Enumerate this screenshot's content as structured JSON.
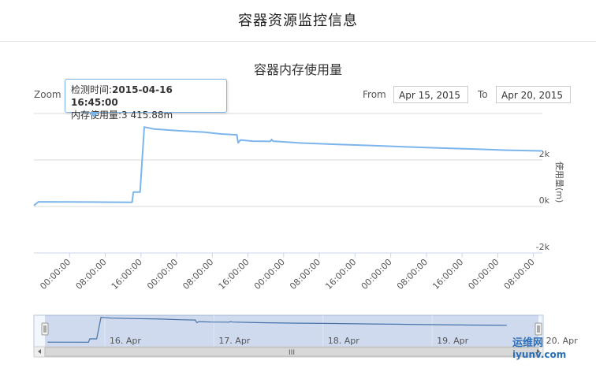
{
  "page": {
    "title": "容器资源监控信息"
  },
  "chart": {
    "title": "容器内存使用量"
  },
  "controls": {
    "zoom_label": "Zoom",
    "from_label": "From",
    "from_value": "Apr 15, 2015",
    "to_label": "To",
    "to_value": "Apr 20, 2015"
  },
  "tooltip": {
    "time_label": "检测时间:",
    "time_value": "2015-04-16 16:45:00",
    "usage_label": "内存使用量:",
    "usage_value": "3 415.88m"
  },
  "navigator": {
    "scrollbar_grip": "III"
  },
  "watermark": {
    "line1": "运维网",
    "line2": "iyunv.com"
  },
  "chart_data": {
    "type": "line",
    "title": "容器内存使用量",
    "ylabel": "使用量(m)",
    "ylim": [
      -2000,
      4000
    ],
    "y_ticks": [
      "-2k",
      "0k",
      "2k"
    ],
    "y_tick_values": [
      -2000,
      0,
      2000
    ],
    "x_ticks": [
      "00:00:00",
      "08:00:00",
      "16:00:00",
      "00:00:00",
      "08:00:00",
      "16:00:00",
      "00:00:00",
      "08:00:00",
      "16:00:00",
      "00:00:00",
      "08:00:00",
      "16:00:00",
      "00:00:00",
      "08:00:00"
    ],
    "x_tick_hours": [
      0,
      8,
      16,
      24,
      32,
      40,
      48,
      56,
      64,
      72,
      80,
      88,
      96,
      104
    ],
    "xlim_hours": [
      -8,
      106
    ],
    "navigator_labels": [
      "16. Apr",
      "17. Apr",
      "18. Apr",
      "19. Apr",
      "20. Apr"
    ],
    "navigator_label_hours": [
      24,
      48,
      72,
      96,
      120
    ],
    "navigator_xlim_hours": [
      2,
      114
    ],
    "series": [
      {
        "color": "#7cb5ec",
        "points": [
          [
            -8,
            40
          ],
          [
            -7,
            200
          ],
          [
            5,
            190
          ],
          [
            14,
            180
          ],
          [
            14.3,
            620
          ],
          [
            15.8,
            620
          ],
          [
            16.75,
            3416
          ],
          [
            19,
            3330
          ],
          [
            24,
            3260
          ],
          [
            30,
            3200
          ],
          [
            34,
            3120
          ],
          [
            37.5,
            3080
          ],
          [
            37.8,
            2740
          ],
          [
            38.3,
            2860
          ],
          [
            41,
            2810
          ],
          [
            45,
            2800
          ],
          [
            45.3,
            2880
          ],
          [
            45.6,
            2810
          ],
          [
            52,
            2730
          ],
          [
            60,
            2670
          ],
          [
            68,
            2620
          ],
          [
            76,
            2560
          ],
          [
            84,
            2510
          ],
          [
            92,
            2460
          ],
          [
            98,
            2420
          ],
          [
            106,
            2390
          ]
        ]
      }
    ],
    "grid": true,
    "legend": "none"
  }
}
